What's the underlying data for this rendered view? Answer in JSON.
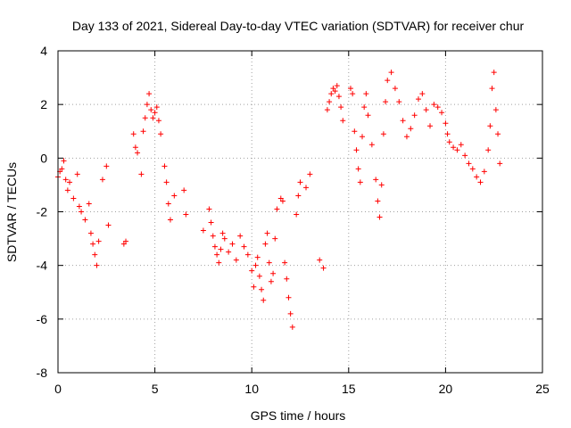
{
  "chart_data": {
    "type": "scatter",
    "title": "Day 133 of 2021, Sidereal Day-to-day VTEC variation (SDTVAR) for receiver chur",
    "xlabel": "GPS time / hours",
    "ylabel": "SDTVAR / TECUs",
    "xlim": [
      0,
      25
    ],
    "ylim": [
      -8,
      4
    ],
    "x_ticks": [
      0,
      5,
      10,
      15,
      20,
      25
    ],
    "x_tick_labels": [
      "0",
      "5",
      "10",
      "15",
      "20",
      "25"
    ],
    "y_ticks": [
      -8,
      -6,
      -4,
      -2,
      0,
      2,
      4
    ],
    "y_tick_labels": [
      "-8",
      "-6",
      "-4",
      "-2",
      "0",
      "2",
      "4"
    ],
    "grid": true,
    "marker": "+",
    "series": [
      {
        "name": "SDTVAR",
        "color": "#ff0000",
        "x": [
          0.0,
          0.1,
          0.2,
          0.3,
          0.4,
          0.5,
          0.6,
          0.8,
          1.0,
          1.1,
          1.2,
          1.4,
          1.6,
          1.7,
          1.8,
          1.9,
          2.0,
          2.1,
          2.3,
          2.5,
          2.6,
          3.4,
          3.5,
          3.9,
          4.0,
          4.1,
          4.3,
          4.4,
          4.5,
          4.6,
          4.7,
          4.8,
          4.9,
          5.0,
          5.1,
          5.2,
          5.3,
          5.5,
          5.6,
          5.7,
          5.8,
          6.0,
          6.5,
          6.6,
          7.5,
          7.8,
          7.9,
          8.0,
          8.1,
          8.2,
          8.3,
          8.4,
          8.5,
          8.6,
          8.8,
          9.0,
          9.2,
          9.4,
          9.6,
          9.8,
          10.0,
          10.1,
          10.2,
          10.3,
          10.4,
          10.5,
          10.6,
          10.7,
          10.8,
          10.9,
          11.0,
          11.1,
          11.2,
          11.3,
          11.5,
          11.6,
          11.7,
          11.8,
          11.9,
          12.0,
          12.1,
          12.3,
          12.4,
          12.5,
          12.8,
          13.0,
          13.5,
          13.7,
          13.9,
          14.0,
          14.1,
          14.2,
          14.3,
          14.4,
          14.5,
          14.6,
          14.7,
          15.1,
          15.2,
          15.3,
          15.4,
          15.5,
          15.6,
          15.7,
          15.8,
          15.9,
          16.0,
          16.2,
          16.4,
          16.5,
          16.6,
          16.7,
          16.8,
          16.9,
          17.0,
          17.2,
          17.4,
          17.6,
          17.8,
          18.0,
          18.2,
          18.4,
          18.6,
          18.8,
          19.0,
          19.2,
          19.4,
          19.6,
          19.8,
          20.0,
          20.1,
          20.2,
          20.4,
          20.6,
          20.8,
          21.0,
          21.2,
          21.4,
          21.6,
          21.8,
          22.0,
          22.2,
          22.3,
          22.4,
          22.5,
          22.6,
          22.7,
          22.8
        ],
        "y": [
          -0.7,
          -0.5,
          -0.4,
          -0.1,
          -0.8,
          -1.2,
          -0.9,
          -1.5,
          -0.6,
          -1.8,
          -2.0,
          -2.3,
          -1.7,
          -2.8,
          -3.2,
          -3.6,
          -4.0,
          -3.1,
          -0.8,
          -0.3,
          -2.5,
          -3.2,
          -3.1,
          0.9,
          0.4,
          0.2,
          -0.6,
          1.0,
          1.5,
          2.0,
          2.4,
          1.8,
          1.5,
          1.7,
          1.9,
          1.4,
          0.9,
          -0.3,
          -0.9,
          -1.7,
          -2.3,
          -1.4,
          -1.2,
          -2.1,
          -2.7,
          -1.9,
          -2.4,
          -2.9,
          -3.3,
          -3.6,
          -3.9,
          -3.4,
          -2.8,
          -3.0,
          -3.5,
          -3.2,
          -3.8,
          -2.9,
          -3.3,
          -3.6,
          -4.2,
          -4.8,
          -4.0,
          -3.7,
          -4.4,
          -4.9,
          -5.3,
          -3.2,
          -2.8,
          -3.9,
          -4.6,
          -4.3,
          -3.0,
          -1.9,
          -1.5,
          -1.6,
          -3.9,
          -4.5,
          -5.2,
          -5.8,
          -6.3,
          -2.1,
          -1.4,
          -0.9,
          -1.1,
          -0.6,
          -3.8,
          -4.1,
          1.8,
          2.1,
          2.4,
          2.6,
          2.5,
          2.7,
          2.3,
          1.9,
          1.4,
          2.6,
          2.4,
          1.0,
          0.3,
          -0.4,
          -0.9,
          0.8,
          1.9,
          2.4,
          1.6,
          0.5,
          -0.8,
          -1.6,
          -2.2,
          -1.0,
          0.9,
          2.1,
          2.9,
          3.2,
          2.6,
          2.1,
          1.4,
          0.8,
          1.1,
          1.6,
          2.2,
          2.4,
          1.8,
          1.2,
          2.0,
          1.9,
          1.7,
          1.3,
          0.9,
          0.6,
          0.4,
          0.3,
          0.5,
          0.1,
          -0.2,
          -0.4,
          -0.7,
          -0.9,
          -0.5,
          0.3,
          1.2,
          2.6,
          3.2,
          1.8,
          0.9,
          -0.2
        ]
      }
    ]
  }
}
